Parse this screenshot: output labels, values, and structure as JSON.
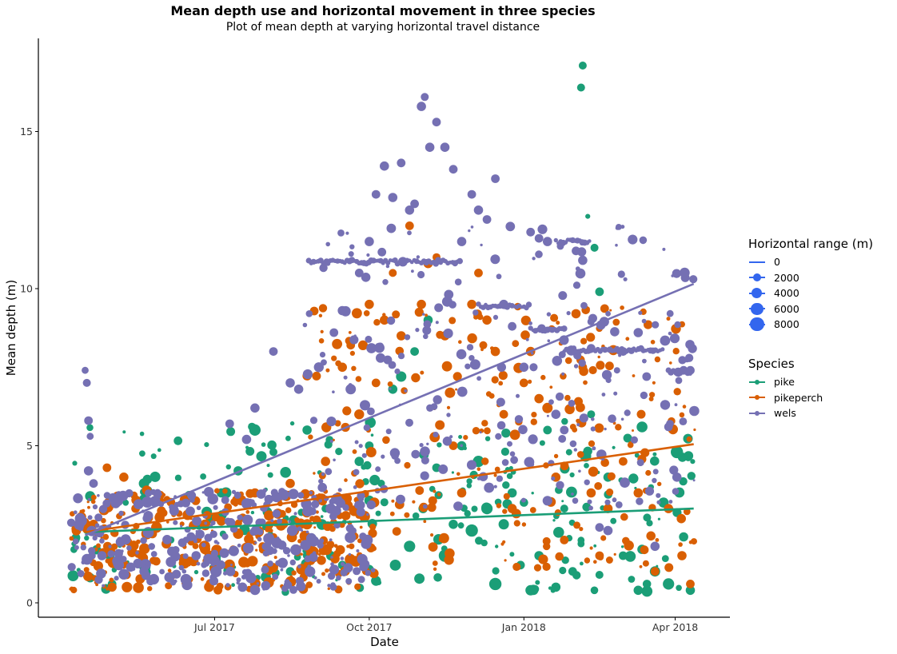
{
  "title": "Mean depth use and horizontal movement in three species",
  "subtitle": "Plot of mean depth at varying horizontal travel distance",
  "legend_size": {
    "title": "Horizontal range (m)",
    "items": [
      "0",
      "2000",
      "4000",
      "6000",
      "8000"
    ],
    "color": "#3366ee"
  },
  "legend_species": {
    "title": "Species",
    "items": [
      {
        "label": "pike",
        "color": "#1b9e77"
      },
      {
        "label": "pikeperch",
        "color": "#d95f02"
      },
      {
        "label": "wels",
        "color": "#7570b3"
      }
    ]
  },
  "chart_data": {
    "type": "scatter",
    "xlabel": "Date",
    "ylabel": "Mean depth (m)",
    "x_ticks": [
      "Jul 2017",
      "Oct 2017",
      "Jan 2018",
      "Apr 2018"
    ],
    "y_ticks": [
      "0",
      "5",
      "10",
      "15"
    ],
    "x_range": [
      "2017-04-10",
      "2018-04-15"
    ],
    "ylim": [
      0,
      17.5
    ],
    "grid": false,
    "series": [
      {
        "name": "pike",
        "color": "#1b9e77",
        "trend": {
          "start": [
            "2017-04-15",
            2.25
          ],
          "end": [
            "2018-04-12",
            3.0
          ]
        },
        "points": [
          [
            "2017-04-18",
            0.8,
            3000
          ],
          [
            "2017-05-01",
            0.6,
            2500
          ],
          [
            "2017-05-20",
            3.8,
            4000
          ],
          [
            "2017-06-05",
            2.0,
            1500
          ],
          [
            "2017-06-20",
            1.5,
            500
          ],
          [
            "2017-07-05",
            3.5,
            3000
          ],
          [
            "2017-07-15",
            4.2,
            3000
          ],
          [
            "2017-07-25",
            5.5,
            5000
          ],
          [
            "2017-08-05",
            4.8,
            2000
          ],
          [
            "2017-08-15",
            1.0,
            2500
          ],
          [
            "2017-08-25",
            5.5,
            3000
          ],
          [
            "2017-09-05",
            3.0,
            2000
          ],
          [
            "2017-09-15",
            1.2,
            2500
          ],
          [
            "2017-09-25",
            4.5,
            3000
          ],
          [
            "2017-10-01",
            5.0,
            2500
          ],
          [
            "2017-10-05",
            0.7,
            3500
          ],
          [
            "2017-10-10",
            3.2,
            2000
          ],
          [
            "2017-10-15",
            6.8,
            3000
          ],
          [
            "2017-10-20",
            7.2,
            4000
          ],
          [
            "2017-10-25",
            1.8,
            5000
          ],
          [
            "2017-10-28",
            8.0,
            2500
          ],
          [
            "2017-11-02",
            3.0,
            3000
          ],
          [
            "2017-11-05",
            9.0,
            3000
          ],
          [
            "2017-11-10",
            4.3,
            2500
          ],
          [
            "2017-11-15",
            1.5,
            6000
          ],
          [
            "2017-11-20",
            2.5,
            3000
          ],
          [
            "2017-11-25",
            5.0,
            3000
          ],
          [
            "2017-12-01",
            2.3,
            6000
          ],
          [
            "2017-12-05",
            4.5,
            5000
          ],
          [
            "2017-12-10",
            3.0,
            5000
          ],
          [
            "2017-12-15",
            0.6,
            6000
          ],
          [
            "2017-12-20",
            2.5,
            4000
          ],
          [
            "2017-12-25",
            3.5,
            3000
          ],
          [
            "2017-12-30",
            1.2,
            2500
          ],
          [
            "2018-01-05",
            0.4,
            4000
          ],
          [
            "2018-01-10",
            1.5,
            3000
          ],
          [
            "2018-01-15",
            5.5,
            2500
          ],
          [
            "2018-01-20",
            0.5,
            3000
          ],
          [
            "2018-01-25",
            3.0,
            2000
          ],
          [
            "2018-01-30",
            1.0,
            2500
          ],
          [
            "2018-02-05",
            17.1,
            2000
          ],
          [
            "2018-02-04",
            16.4,
            2000
          ],
          [
            "2018-02-08",
            12.3,
            500
          ],
          [
            "2018-02-12",
            11.3,
            2000
          ],
          [
            "2018-02-15",
            9.9,
            2500
          ],
          [
            "2018-02-10",
            6.0,
            2000
          ],
          [
            "2018-02-20",
            4.0,
            3000
          ],
          [
            "2018-03-01",
            1.5,
            2500
          ],
          [
            "2018-03-10",
            0.4,
            3000
          ],
          [
            "2018-03-20",
            1.0,
            4000
          ],
          [
            "2018-03-28",
            0.6,
            5000
          ],
          [
            "2018-04-02",
            4.8,
            6000
          ],
          [
            "2018-04-06",
            2.1,
            3000
          ],
          [
            "2018-04-10",
            0.4,
            3000
          ]
        ]
      },
      {
        "name": "pikeperch",
        "color": "#d95f02",
        "trend": {
          "start": [
            "2017-04-15",
            2.25
          ],
          "end": [
            "2018-04-12",
            5.05
          ]
        },
        "points": [
          [
            "2017-04-20",
            2.5,
            3000
          ],
          [
            "2017-04-28",
            4.3,
            2500
          ],
          [
            "2017-05-08",
            4.0,
            3000
          ],
          [
            "2017-05-15",
            3.0,
            2500
          ],
          [
            "2017-05-25",
            2.2,
            3000
          ],
          [
            "2017-06-05",
            3.2,
            2500
          ],
          [
            "2017-06-15",
            2.8,
            4000
          ],
          [
            "2017-06-25",
            1.8,
            5000
          ],
          [
            "2017-07-05",
            2.6,
            3000
          ],
          [
            "2017-07-15",
            2.2,
            4000
          ],
          [
            "2017-07-25",
            3.5,
            3000
          ],
          [
            "2017-08-05",
            2.0,
            2500
          ],
          [
            "2017-08-15",
            3.8,
            3000
          ],
          [
            "2017-08-25",
            2.5,
            4000
          ],
          [
            "2017-09-05",
            4.5,
            3000
          ],
          [
            "2017-09-15",
            7.5,
            3000
          ],
          [
            "2017-09-20",
            8.2,
            2500
          ],
          [
            "2017-09-25",
            6.0,
            3500
          ],
          [
            "2017-10-01",
            9.5,
            3000
          ],
          [
            "2017-10-05",
            7.0,
            2500
          ],
          [
            "2017-10-10",
            9.0,
            3000
          ],
          [
            "2017-10-15",
            10.5,
            2000
          ],
          [
            "2017-10-20",
            8.5,
            3000
          ],
          [
            "2017-10-25",
            12.0,
            2500
          ],
          [
            "2017-11-01",
            9.5,
            3000
          ],
          [
            "2017-11-05",
            10.8,
            3000
          ],
          [
            "2017-11-10",
            11.0,
            2000
          ],
          [
            "2017-11-15",
            8.5,
            3000
          ],
          [
            "2017-11-20",
            5.0,
            2500
          ],
          [
            "2017-11-25",
            3.5,
            3000
          ],
          [
            "2017-12-01",
            9.5,
            3000
          ],
          [
            "2017-12-05",
            10.5,
            2500
          ],
          [
            "2017-12-10",
            9.0,
            3000
          ],
          [
            "2017-12-15",
            8.0,
            3000
          ],
          [
            "2017-12-20",
            6.0,
            2500
          ],
          [
            "2017-12-25",
            3.0,
            3000
          ],
          [
            "2018-01-01",
            7.0,
            2500
          ],
          [
            "2018-01-05",
            8.0,
            3000
          ],
          [
            "2018-01-10",
            6.5,
            3000
          ],
          [
            "2018-01-15",
            6.2,
            4000
          ],
          [
            "2018-01-20",
            4.0,
            3000
          ],
          [
            "2018-01-25",
            2.0,
            2500
          ],
          [
            "2018-02-01",
            9.2,
            3000
          ],
          [
            "2018-02-05",
            7.5,
            2500
          ],
          [
            "2018-02-10",
            3.5,
            3000
          ],
          [
            "2018-02-15",
            1.5,
            2500
          ],
          [
            "2018-02-20",
            3.0,
            3000
          ],
          [
            "2018-03-01",
            4.5,
            2500
          ],
          [
            "2018-03-10",
            3.5,
            3000
          ],
          [
            "2018-03-20",
            1.0,
            2500
          ],
          [
            "2018-03-28",
            3.0,
            3000
          ],
          [
            "2018-04-05",
            1.5,
            3000
          ],
          [
            "2018-04-10",
            0.6,
            2500
          ]
        ]
      },
      {
        "name": "wels",
        "color": "#7570b3",
        "trend": {
          "start": [
            "2017-04-15",
            2.15
          ],
          "end": [
            "2018-04-12",
            10.15
          ]
        },
        "points": [
          [
            "2017-04-15",
            7.4,
            1500
          ],
          [
            "2017-04-16",
            7.0,
            2000
          ],
          [
            "2017-04-17",
            5.8,
            2500
          ],
          [
            "2017-04-18",
            5.3,
            1500
          ],
          [
            "2017-04-17",
            4.2,
            3000
          ],
          [
            "2017-04-20",
            3.8,
            2500
          ],
          [
            "2017-04-25",
            1.5,
            3000
          ],
          [
            "2017-05-05",
            1.2,
            4000
          ],
          [
            "2017-05-20",
            1.0,
            3000
          ],
          [
            "2017-06-05",
            1.3,
            4000
          ],
          [
            "2017-06-20",
            1.5,
            3000
          ],
          [
            "2017-07-01",
            1.0,
            2500
          ],
          [
            "2017-07-10",
            5.7,
            2500
          ],
          [
            "2017-07-20",
            5.2,
            3000
          ],
          [
            "2017-07-25",
            6.2,
            3000
          ],
          [
            "2017-08-05",
            8.0,
            2500
          ],
          [
            "2017-08-15",
            7.0,
            3000
          ],
          [
            "2017-08-20",
            6.8,
            3000
          ],
          [
            "2017-09-01",
            7.5,
            3500
          ],
          [
            "2017-09-10",
            8.6,
            2500
          ],
          [
            "2017-09-15",
            9.3,
            3000
          ],
          [
            "2017-09-20",
            6.8,
            4000
          ],
          [
            "2017-09-25",
            10.5,
            2500
          ],
          [
            "2017-10-01",
            11.5,
            3000
          ],
          [
            "2017-10-05",
            13.0,
            2500
          ],
          [
            "2017-10-10",
            13.9,
            3000
          ],
          [
            "2017-10-15",
            12.9,
            3000
          ],
          [
            "2017-10-20",
            14.0,
            2500
          ],
          [
            "2017-10-25",
            12.5,
            3000
          ],
          [
            "2017-10-28",
            12.7,
            2500
          ],
          [
            "2017-11-01",
            15.8,
            3000
          ],
          [
            "2017-11-03",
            16.1,
            2000
          ],
          [
            "2017-11-06",
            14.5,
            3000
          ],
          [
            "2017-11-10",
            15.3,
            2500
          ],
          [
            "2017-11-15",
            14.5,
            3000
          ],
          [
            "2017-11-20",
            13.8,
            2500
          ],
          [
            "2017-11-25",
            11.5,
            3000
          ],
          [
            "2017-12-01",
            13.0,
            2500
          ],
          [
            "2017-12-05",
            12.5,
            3000
          ],
          [
            "2017-12-10",
            12.2,
            2500
          ],
          [
            "2017-12-15",
            13.5,
            2500
          ],
          [
            "2017-12-20",
            9.5,
            3000
          ],
          [
            "2017-12-25",
            8.8,
            2500
          ],
          [
            "2018-01-01",
            7.5,
            3000
          ],
          [
            "2018-01-05",
            11.8,
            2500
          ],
          [
            "2018-01-10",
            11.6,
            2500
          ],
          [
            "2018-01-15",
            11.5,
            3000
          ],
          [
            "2018-01-20",
            6.0,
            3000
          ],
          [
            "2018-01-25",
            5.5,
            2500
          ],
          [
            "2018-02-01",
            11.2,
            2500
          ],
          [
            "2018-02-05",
            10.9,
            3000
          ],
          [
            "2018-02-10",
            8.1,
            2500
          ],
          [
            "2018-02-15",
            2.4,
            2500
          ],
          [
            "2018-02-20",
            2.3,
            3000
          ],
          [
            "2018-03-01",
            8.0,
            2500
          ],
          [
            "2018-03-10",
            8.6,
            3000
          ],
          [
            "2018-03-15",
            7.2,
            2500
          ],
          [
            "2018-03-20",
            1.8,
            3000
          ],
          [
            "2018-03-28",
            5.6,
            2500
          ],
          [
            "2018-04-02",
            4.0,
            3000
          ],
          [
            "2018-04-06",
            7.4,
            2500
          ],
          [
            "2018-04-10",
            7.4,
            2500
          ]
        ],
        "tracks": [
          {
            "from": "2017-08-26",
            "to": "2017-11-25",
            "y": 10.85
          },
          {
            "from": "2017-12-05",
            "to": "2018-01-05",
            "y": 9.45
          },
          {
            "from": "2018-01-05",
            "to": "2018-01-25",
            "y": 8.7
          },
          {
            "from": "2018-01-20",
            "to": "2018-02-10",
            "y": 11.5
          },
          {
            "from": "2018-01-25",
            "to": "2018-03-25",
            "y": 8.05
          },
          {
            "from": "2018-03-28",
            "to": "2018-04-11",
            "y": 7.35
          }
        ]
      }
    ]
  }
}
